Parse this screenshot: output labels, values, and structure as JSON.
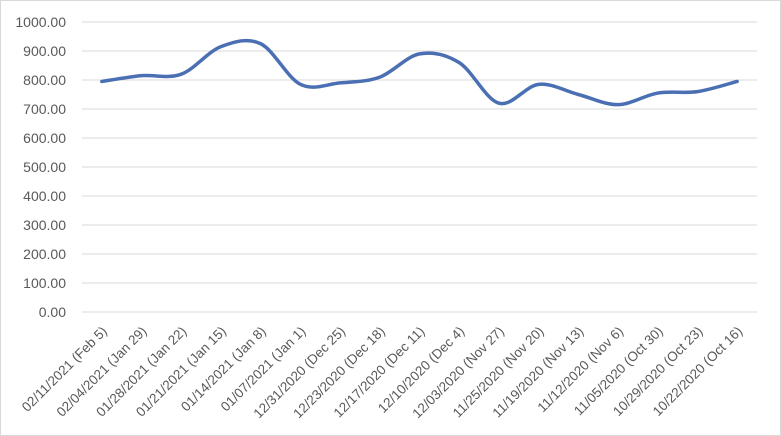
{
  "colors": {
    "series": "#4a6fb3",
    "grid": "#d9d9d9",
    "text": "#595959"
  },
  "chart_data": {
    "type": "line",
    "smooth": true,
    "grid": true,
    "legend": "none",
    "ylim": [
      0,
      1000
    ],
    "yticks": [
      "0.00",
      "100.00",
      "200.00",
      "300.00",
      "400.00",
      "500.00",
      "600.00",
      "700.00",
      "800.00",
      "900.00",
      "1000.00"
    ],
    "categories": [
      "02/11/2021 (Feb 5)",
      "02/04/2021 (Jan 29)",
      "01/28/2021 (Jan 22)",
      "01/21/2021 (Jan 15)",
      "01/14/2021 (Jan 8)",
      "01/07/2021 (Jan 1)",
      "12/31/2020 (Dec 25)",
      "12/23/2020 (Dec 18)",
      "12/17/2020 (Dec 11)",
      "12/10/2020 (Dec 4)",
      "12/03/2020 (Nov 27)",
      "11/25/2020 (Nov 20)",
      "11/19/2020 (Nov 13)",
      "11/12/2020 (Nov 6)",
      "11/05/2020 (Oct 30)",
      "10/29/2020 (Oct 23)",
      "10/22/2020 (Oct 16)"
    ],
    "series": [
      {
        "values": [
          795,
          815,
          820,
          915,
          925,
          785,
          790,
          810,
          890,
          860,
          720,
          785,
          750,
          715,
          755,
          760,
          795
        ]
      }
    ]
  }
}
